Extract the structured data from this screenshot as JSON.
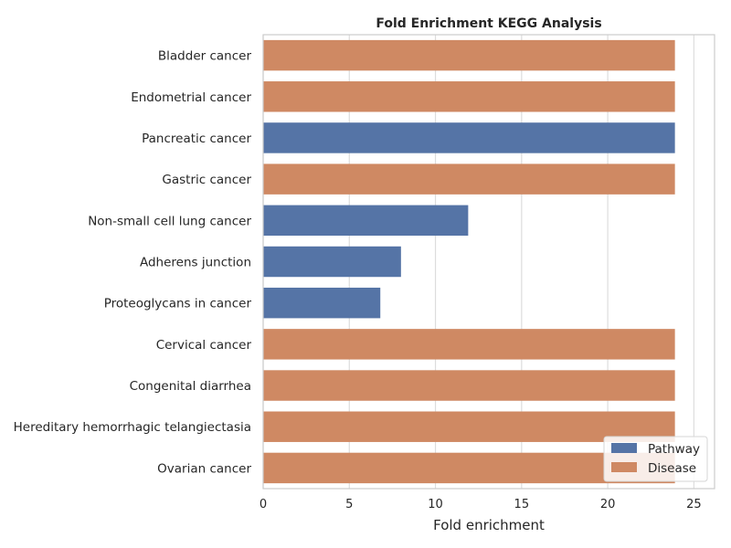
{
  "chart_data": {
    "type": "bar",
    "orientation": "horizontal",
    "title": "Fold Enrichment KEGG Analysis",
    "xlabel": "Fold enrichment",
    "ylabel": "",
    "xlim": [
      0,
      26.2
    ],
    "xticks": [
      0,
      5,
      10,
      15,
      20,
      25
    ],
    "grid": true,
    "legend_position": "bottom-right",
    "categories": [
      "Bladder cancer",
      "Endometrial cancer",
      "Pancreatic cancer",
      "Gastric cancer",
      "Non-small cell lung cancer",
      "Adherens junction",
      "Proteoglycans in cancer",
      "Cervical cancer",
      "Congenital diarrhea",
      "Hereditary hemorrhagic telangiectasia",
      "Ovarian cancer"
    ],
    "values": [
      23.9,
      23.9,
      23.9,
      23.9,
      11.9,
      8.0,
      6.8,
      23.9,
      23.9,
      23.9,
      23.9
    ],
    "groups": [
      "Disease",
      "Disease",
      "Pathway",
      "Disease",
      "Pathway",
      "Pathway",
      "Pathway",
      "Disease",
      "Disease",
      "Disease",
      "Disease"
    ],
    "series": [
      {
        "name": "Pathway",
        "color": "#5574a6"
      },
      {
        "name": "Disease",
        "color": "#cf8963"
      }
    ]
  }
}
